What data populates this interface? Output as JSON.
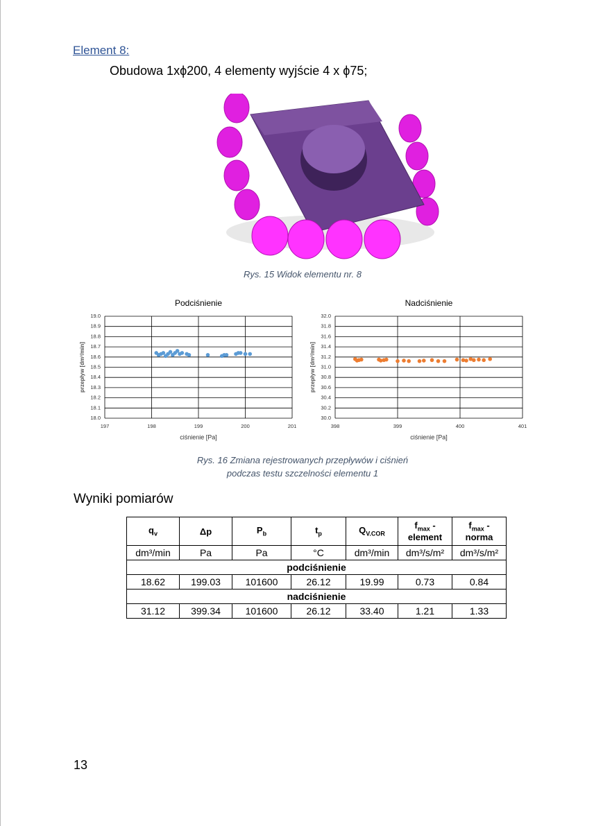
{
  "heading": "Element 8:",
  "subtitle": "Obudowa 1xϕ200, 4 elementy wyjście 4 x ϕ75;",
  "figure_caption": "Rys. 15 Widok elementu nr. 8",
  "chart_caption": [
    "Rys. 16 Zmiana rejestrowanych przepływów i ciśnień",
    "podczas testu szczelności elementu 1"
  ],
  "chart_data": [
    {
      "type": "scatter",
      "title": "Podciśnienie",
      "x_label": "ciśnienie [Pa]",
      "y_label": "przepływ [dm³/min]",
      "grid": true,
      "xlim": [
        197,
        201
      ],
      "xticks": [
        197,
        198,
        199,
        200,
        201
      ],
      "ylim": [
        18,
        19
      ],
      "yticks": [
        {
          "value": 18,
          "label": "18.0"
        },
        18.1,
        18.2,
        18.3,
        18.4,
        18.5,
        18.6,
        18.7,
        18.8,
        18.9,
        {
          "value": 19,
          "label": "19.0"
        }
      ],
      "series": [
        {
          "name": "Podciśnienie",
          "color": "#5b9bd5",
          "x": [
            198.1,
            198.15,
            198.2,
            198.25,
            198.3,
            198.35,
            198.4,
            198.45,
            198.5,
            198.55,
            198.6,
            198.65,
            198.75,
            198.8,
            199.2,
            199.5,
            199.55,
            199.6,
            199.8,
            199.85,
            199.9,
            200.0,
            200.1
          ],
          "values": [
            18.64,
            18.62,
            18.63,
            18.64,
            18.61,
            18.63,
            18.65,
            18.62,
            18.64,
            18.66,
            18.63,
            18.64,
            18.63,
            18.62,
            18.62,
            18.61,
            18.62,
            18.62,
            18.63,
            18.64,
            18.64,
            18.63,
            18.63
          ]
        }
      ]
    },
    {
      "type": "scatter",
      "title": "Nadciśnienie",
      "x_label": "ciśnienie [Pa]",
      "y_label": "przepływ [dm³/min]",
      "grid": true,
      "xlim": [
        398,
        401
      ],
      "xticks": [
        398,
        399,
        400,
        401
      ],
      "ylim": [
        30,
        32
      ],
      "yticks": [
        {
          "value": 30,
          "label": "30.0"
        },
        30.2,
        30.4,
        30.6,
        30.8,
        {
          "value": 31,
          "label": "31.0"
        },
        31.2,
        31.4,
        31.6,
        31.8,
        {
          "value": 32,
          "label": "32.0"
        }
      ],
      "series": [
        {
          "name": "Nadciśnienie",
          "color": "#ed7d31",
          "x": [
            398.32,
            398.35,
            398.38,
            398.42,
            398.7,
            398.73,
            398.78,
            398.82,
            399.0,
            399.1,
            399.18,
            399.35,
            399.42,
            399.55,
            399.65,
            399.75,
            399.95,
            400.05,
            400.1,
            400.17,
            400.22,
            400.3,
            400.38,
            400.48
          ],
          "values": [
            31.16,
            31.13,
            31.14,
            31.15,
            31.15,
            31.13,
            31.14,
            31.15,
            31.12,
            31.13,
            31.12,
            31.12,
            31.13,
            31.14,
            31.12,
            31.12,
            31.15,
            31.14,
            31.13,
            31.16,
            31.14,
            31.15,
            31.14,
            31.16
          ]
        }
      ]
    }
  ],
  "section_title": "Wyniki pomiarów",
  "table": {
    "header": [
      {
        "text": "q",
        "sub": "v"
      },
      {
        "text": "Δp"
      },
      {
        "text": "P",
        "sub": "b"
      },
      {
        "text": "t",
        "sub": "p"
      },
      {
        "text": "Q",
        "sub": "V.COR"
      },
      {
        "text": "f",
        "sub": "max",
        "suffix": " - element"
      },
      {
        "text": "f",
        "sub": "max",
        "suffix": " - norma"
      }
    ],
    "units": [
      "dm³/min",
      "Pa",
      "Pa",
      "°C",
      "dm³/min",
      "dm³/s/m²",
      "dm³/s/m²"
    ],
    "sections": [
      {
        "title": "podciśnienie",
        "row": [
          "18.62",
          "199.03",
          "101600",
          "26.12",
          "19.99",
          "0.73",
          "0.84"
        ]
      },
      {
        "title": "nadciśnienie",
        "row": [
          "31.12",
          "399.34",
          "101600",
          "26.12",
          "33.40",
          "1.21",
          "1.33"
        ]
      }
    ]
  },
  "page_number": "13"
}
